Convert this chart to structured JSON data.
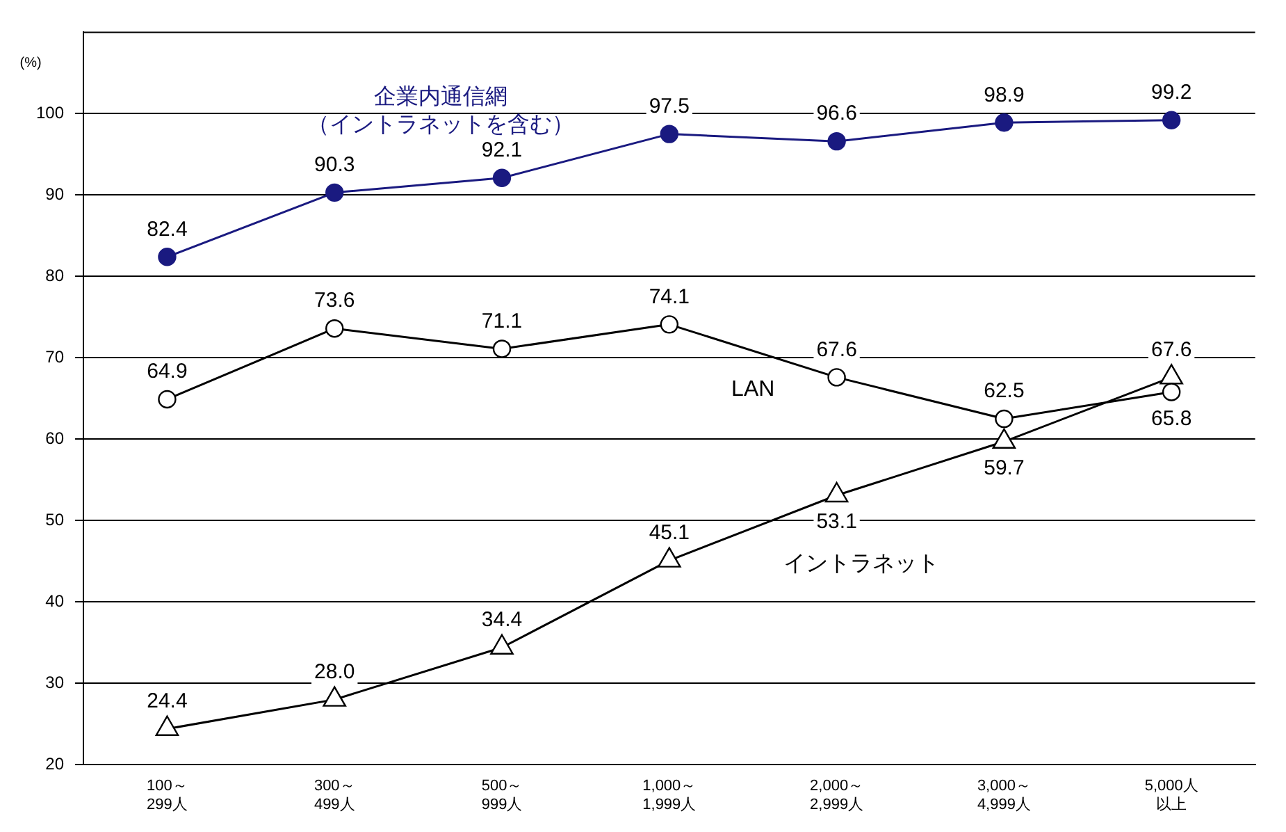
{
  "chart_data": {
    "type": "line",
    "ylabel": "(%)",
    "categories": [
      "100～299人",
      "300～499人",
      "500～999人",
      "1,000～1,999人",
      "2,000～2,999人",
      "3,000～4,999人",
      "5,000人以上"
    ],
    "series": [
      {
        "name": "企業内通信網（イントラネットを含む）",
        "color": "#1a1a80",
        "marker": "circle",
        "values": [
          82.4,
          90.3,
          92.1,
          97.5,
          96.6,
          98.9,
          99.2
        ],
        "value_labels": [
          "82.4",
          "90.3",
          "92.1",
          "97.5",
          "96.6",
          "98.9",
          "99.2"
        ]
      },
      {
        "name": "LAN",
        "color": "#000000",
        "marker": "circle",
        "values": [
          64.9,
          73.6,
          71.1,
          74.1,
          67.6,
          62.5,
          65.8
        ],
        "value_labels": [
          "64.9",
          "73.6",
          "71.1",
          "74.1",
          "67.6",
          "62.5",
          "65.8"
        ]
      },
      {
        "name": "イントラネット",
        "color": "#000000",
        "marker": "triangle",
        "values": [
          24.4,
          28.0,
          34.4,
          45.1,
          53.1,
          59.7,
          67.6
        ],
        "value_labels": [
          "24.4",
          "28.0",
          "34.4",
          "45.1",
          "53.1",
          "59.7",
          "67.6"
        ]
      }
    ],
    "ylim": [
      20,
      110
    ],
    "yticks": [
      20,
      30,
      40,
      50,
      60,
      70,
      80,
      90,
      100
    ],
    "grid": "y",
    "legend": false
  }
}
